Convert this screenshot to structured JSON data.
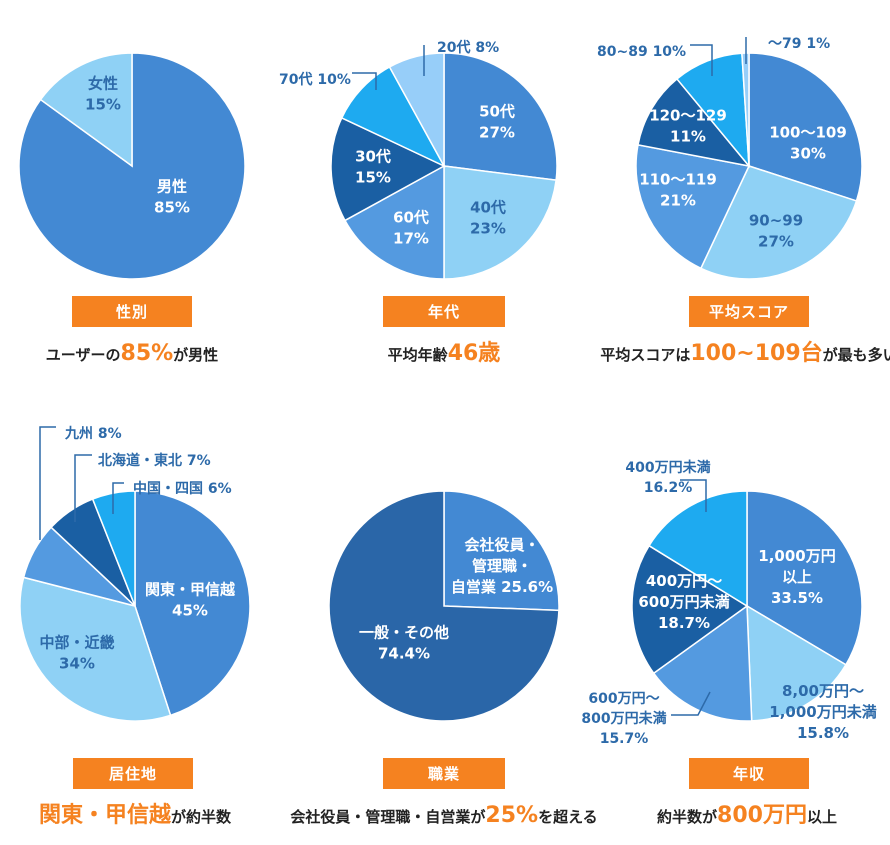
{
  "chart_data": [
    {
      "id": "gender",
      "type": "pie",
      "title": "性別",
      "caption": {
        "pre": "ユーザーの",
        "hl": "85%",
        "post": "が男性"
      },
      "slices": [
        {
          "label": "男性",
          "value": 85,
          "value_label": "85%",
          "color": "#4389d3",
          "text_color": "#ffffff"
        },
        {
          "label": "女性",
          "value": 15,
          "value_label": "15%",
          "color": "#8fd1f5",
          "text_color": "#2d6aa9"
        }
      ]
    },
    {
      "id": "age",
      "type": "pie",
      "title": "年代",
      "caption": {
        "pre": "平均年齢",
        "hl": "46歳",
        "post": ""
      },
      "slices": [
        {
          "label": "50代",
          "value": 27,
          "value_label": "27%",
          "color": "#4389d3",
          "text_color": "#ffffff"
        },
        {
          "label": "40代",
          "value": 23,
          "value_label": "23%",
          "color": "#8fd1f5",
          "text_color": "#2d6aa9"
        },
        {
          "label": "60代",
          "value": 17,
          "value_label": "17%",
          "color": "#549ae0",
          "text_color": "#ffffff"
        },
        {
          "label": "30代",
          "value": 15,
          "value_label": "15%",
          "color": "#1a5fa3",
          "text_color": "#ffffff"
        },
        {
          "label": "70代",
          "value": 10,
          "value_label": "10%",
          "color": "#1eaaf0",
          "text_color": "#2d6aa9",
          "callout": true
        },
        {
          "label": "20代",
          "value": 8,
          "value_label": "8%",
          "color": "#97cef9",
          "text_color": "#2d6aa9",
          "callout": true
        }
      ]
    },
    {
      "id": "score",
      "type": "pie",
      "title": "平均スコア",
      "caption": {
        "pre": "平均スコアは",
        "hl": "100~109台",
        "post": "が最も多い"
      },
      "slices": [
        {
          "label": "100〜109",
          "value": 30,
          "value_label": "30%",
          "color": "#4389d3",
          "text_color": "#ffffff"
        },
        {
          "label": "90~99",
          "value": 27,
          "value_label": "27%",
          "color": "#8fd1f5",
          "text_color": "#2d6aa9"
        },
        {
          "label": "110〜119",
          "value": 21,
          "value_label": "21%",
          "color": "#549ae0",
          "text_color": "#ffffff"
        },
        {
          "label": "120〜129",
          "value": 11,
          "value_label": "11%",
          "color": "#1a5fa3",
          "text_color": "#ffffff"
        },
        {
          "label": "80~89",
          "value": 10,
          "value_label": "10%",
          "color": "#1eaaf0",
          "text_color": "#2d6aa9",
          "callout": true
        },
        {
          "label": "〜79",
          "value": 1,
          "value_label": "1%",
          "color": "#97cef9",
          "text_color": "#2d6aa9",
          "callout": true
        }
      ]
    },
    {
      "id": "region",
      "type": "pie",
      "title": "居住地",
      "caption": {
        "pre": "",
        "hl": "関東・甲信越",
        "post": "が約半数"
      },
      "slices": [
        {
          "label": "関東・甲信越",
          "value": 45,
          "value_label": "45%",
          "color": "#4389d3",
          "text_color": "#ffffff"
        },
        {
          "label": "中部・近畿",
          "value": 34,
          "value_label": "34%",
          "color": "#8fd1f5",
          "text_color": "#2d6aa9"
        },
        {
          "label": "九州",
          "value": 8,
          "value_label": "8%",
          "color": "#549ae0",
          "text_color": "#2d6aa9",
          "callout": true
        },
        {
          "label": "北海道・東北",
          "value": 7,
          "value_label": "7%",
          "color": "#1a5fa3",
          "text_color": "#2d6aa9",
          "callout": true
        },
        {
          "label": "中国・四国",
          "value": 6,
          "value_label": "6%",
          "color": "#1eaaf0",
          "text_color": "#2d6aa9",
          "callout": true
        }
      ]
    },
    {
      "id": "occupation",
      "type": "pie",
      "title": "職業",
      "caption": {
        "pre": "会社役員・管理職・自営業が",
        "hl": "25%",
        "post": "を超える"
      },
      "slices": [
        {
          "label": "会社役員・管理職・自営業",
          "value": 25.6,
          "value_label": "25.6%",
          "color": "#4389d3",
          "text_color": "#ffffff"
        },
        {
          "label": "一般・その他",
          "value": 74.4,
          "value_label": "74.4%",
          "color": "#2a66a8",
          "text_color": "#ffffff"
        }
      ]
    },
    {
      "id": "income",
      "type": "pie",
      "title": "年収",
      "caption": {
        "pre": "約半数が",
        "hl": "800万円",
        "post": "以上"
      },
      "slices": [
        {
          "label": "1,000万円以上",
          "value": 33.5,
          "value_label": "33.5%",
          "color": "#4389d3",
          "text_color": "#ffffff"
        },
        {
          "label": "8,00万円〜1,000万円未満",
          "value": 15.8,
          "value_label": "15.8%",
          "color": "#8fd1f5",
          "text_color": "#2d6aa9",
          "outside": true
        },
        {
          "label": "600万円〜800万円未満",
          "value": 15.7,
          "value_label": "15.7%",
          "color": "#549ae0",
          "text_color": "#2d6aa9",
          "callout": true
        },
        {
          "label": "400万円〜600万円未満",
          "value": 18.7,
          "value_label": "18.7%",
          "color": "#1a5fa3",
          "text_color": "#ffffff"
        },
        {
          "label": "400万円未満",
          "value": 16.2,
          "value_label": "16.2%",
          "color": "#1eaaf0",
          "text_color": "#2d6aa9",
          "callout": true
        }
      ]
    }
  ]
}
